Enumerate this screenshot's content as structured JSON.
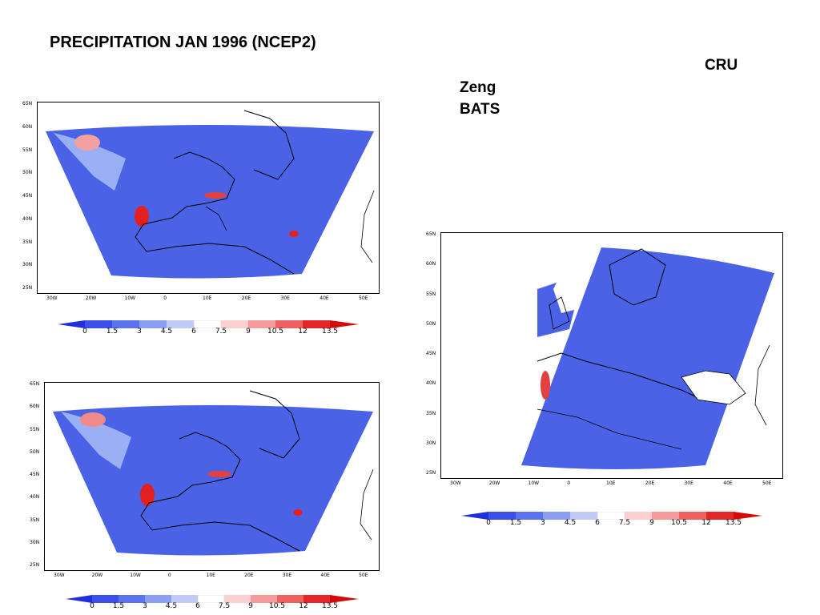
{
  "title": "PRECIPITATION JAN 1996 (NCEP2)",
  "labels": {
    "cru": "CRU",
    "zeng": "Zeng",
    "bats": "BATS"
  },
  "lat_labels": [
    "65N",
    "60N",
    "55N",
    "50N",
    "45N",
    "40N",
    "35N",
    "30N",
    "25N"
  ],
  "lon_labels": [
    "30W",
    "20W",
    "10W",
    "0",
    "10E",
    "20E",
    "30E",
    "40E",
    "50E"
  ],
  "colorbar": {
    "ticks": [
      "0",
      "1.5",
      "3",
      "4.5",
      "6",
      "7.5",
      "9",
      "10.5",
      "12",
      "13.5"
    ],
    "colors": [
      "#1f2fdc",
      "#3a50e8",
      "#5b73ee",
      "#8b9ef2",
      "#c0cbf7",
      "#ffffff",
      "#fbd0d0",
      "#f59a9a",
      "#ef6060",
      "#e52626",
      "#d20b0b"
    ]
  },
  "colors": {
    "ocean_fill": "#4a63e6",
    "coast": "#000000",
    "wet_spot": "#e32020"
  }
}
